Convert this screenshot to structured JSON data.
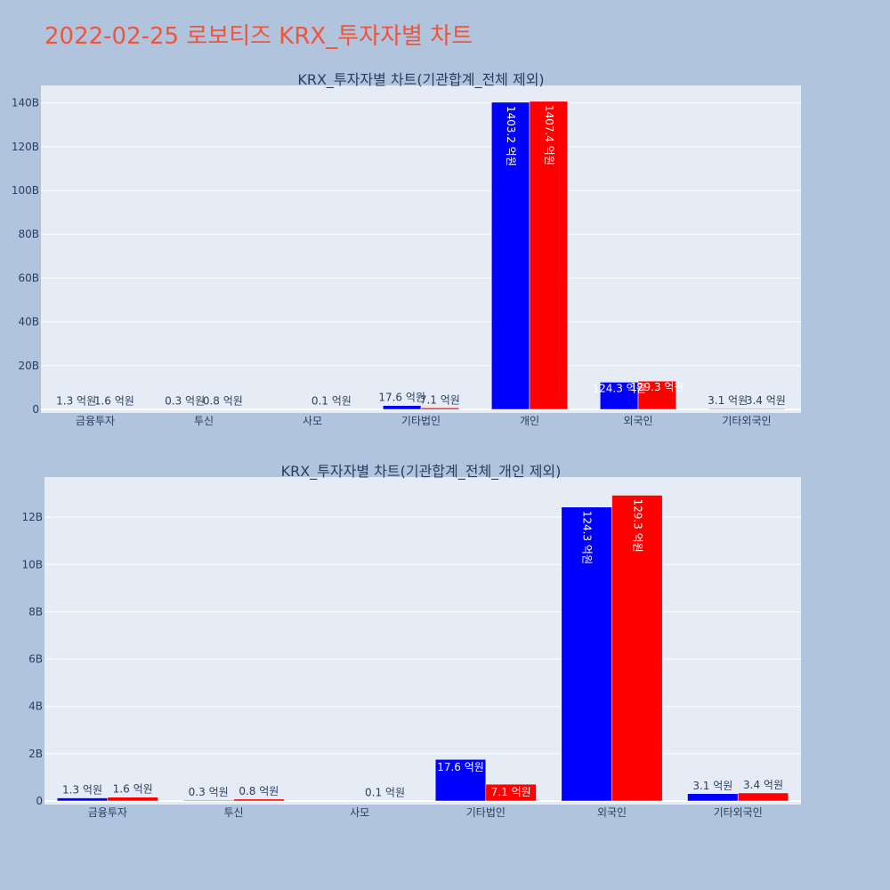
{
  "page": {
    "title": "2022-02-25 로보티즈 KRX_투자자별 차트"
  },
  "colors": {
    "buy": "#0000ff",
    "sell": "#ff0000",
    "page_bg": "#b0c4de",
    "plot_bg": "#e5ecf6",
    "title": "#ef553b"
  },
  "chart_data": [
    {
      "type": "bar",
      "title": "KRX_투자자별 차트(기관합계_전체 제외)",
      "categories": [
        "금융투자",
        "투신",
        "사모",
        "기타법인",
        "개인",
        "외국인",
        "기타외국인"
      ],
      "ylim": [
        0,
        148
      ],
      "yticks": [
        0,
        20,
        40,
        60,
        80,
        100,
        120,
        140
      ],
      "ytick_labels": [
        "0",
        "20B",
        "40B",
        "60B",
        "80B",
        "100B",
        "120B",
        "140B"
      ],
      "grid": true,
      "legend": "none",
      "series": [
        {
          "color": "#0000ff",
          "values": [
            0.13,
            0.03,
            0,
            1.76,
            140.32,
            12.43,
            0.31
          ],
          "labels": [
            "1.3 억원",
            "0.3 억원",
            "",
            "17.6 억원",
            "1403.2 억원",
            "124.3 억원",
            "3.1 억원"
          ]
        },
        {
          "color": "#ff0000",
          "values": [
            0.16,
            0.08,
            0.01,
            0.71,
            140.74,
            12.93,
            0.34
          ],
          "labels": [
            "1.6 억원",
            "0.8 억원",
            "0.1 억원",
            "7.1 억원",
            "1407.4 억원",
            "129.3 억원",
            "3.4 억원"
          ]
        }
      ]
    },
    {
      "type": "bar",
      "title": "KRX_투자자별 차트(기관합계_전체_개인 제외)",
      "categories": [
        "금융투자",
        "투신",
        "사모",
        "기타법인",
        "외국인",
        "기타외국인"
      ],
      "ylim": [
        0,
        13.7
      ],
      "yticks": [
        0,
        2,
        4,
        6,
        8,
        10,
        12
      ],
      "ytick_labels": [
        "0",
        "2B",
        "4B",
        "6B",
        "8B",
        "10B",
        "12B"
      ],
      "grid": true,
      "legend": "none",
      "series": [
        {
          "color": "#0000ff",
          "values": [
            0.13,
            0.03,
            0,
            1.76,
            12.43,
            0.31
          ],
          "labels": [
            "1.3 억원",
            "0.3 억원",
            "",
            "17.6 억원",
            "124.3 억원",
            "3.1 억원"
          ]
        },
        {
          "color": "#ff0000",
          "values": [
            0.16,
            0.08,
            0.01,
            0.71,
            12.93,
            0.34
          ],
          "labels": [
            "1.6 억원",
            "0.8 억원",
            "0.1 억원",
            "7.1 억원",
            "129.3 억원",
            "3.4 억원"
          ]
        }
      ]
    }
  ]
}
